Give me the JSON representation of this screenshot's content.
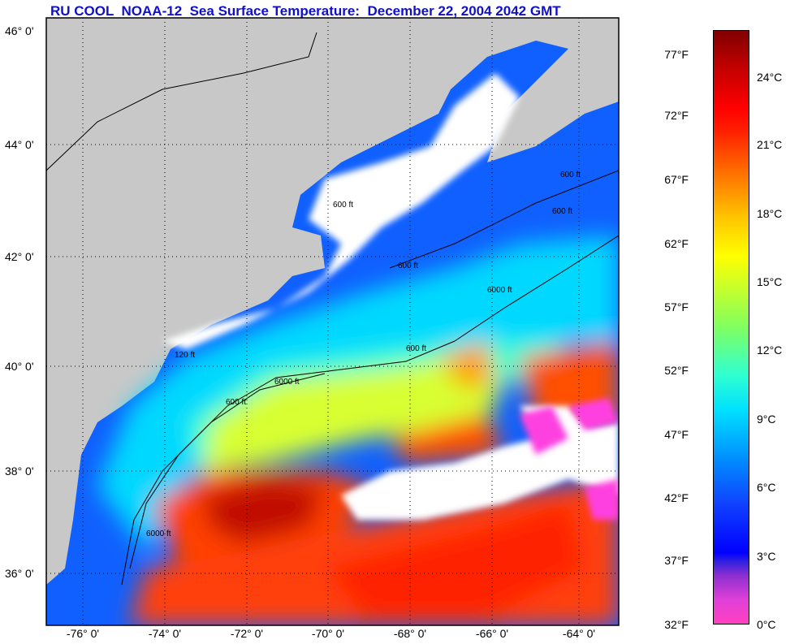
{
  "title": "RU COOL  NOAA-12  Sea Surface Temperature:  December 22, 2004 2042 GMT",
  "latitude_labels": [
    "46° 0'",
    "44° 0'",
    "42° 0'",
    "40° 0'",
    "38° 0'",
    "36° 0'"
  ],
  "longitude_labels": [
    "-76° 0'",
    "-74° 0'",
    "-72° 0'",
    "-70° 0'",
    "-68° 0'",
    "-66° 0'",
    "-64° 0'"
  ],
  "colorbar": {
    "fahrenheit_labels": [
      "77°F",
      "72°F",
      "67°F",
      "62°F",
      "57°F",
      "52°F",
      "47°F",
      "42°F",
      "37°F",
      "32°F"
    ],
    "celsius_labels": [
      "24°C",
      "21°C",
      "18°C",
      "15°C",
      "12°C",
      "9°C",
      "6°C",
      "3°C",
      "0°C"
    ],
    "range_celsius": [
      0,
      26
    ]
  },
  "contour_labels": [
    "600 ft",
    "6000 ft",
    "600 ft",
    "600 ft",
    "6000 ft",
    "600 ft",
    "6000 ft",
    "120 ft",
    "600 ft",
    "600 ft"
  ],
  "colors": {
    "land": "#c8c8c8",
    "cloud": "#ffffff",
    "title": "#1010c8"
  }
}
